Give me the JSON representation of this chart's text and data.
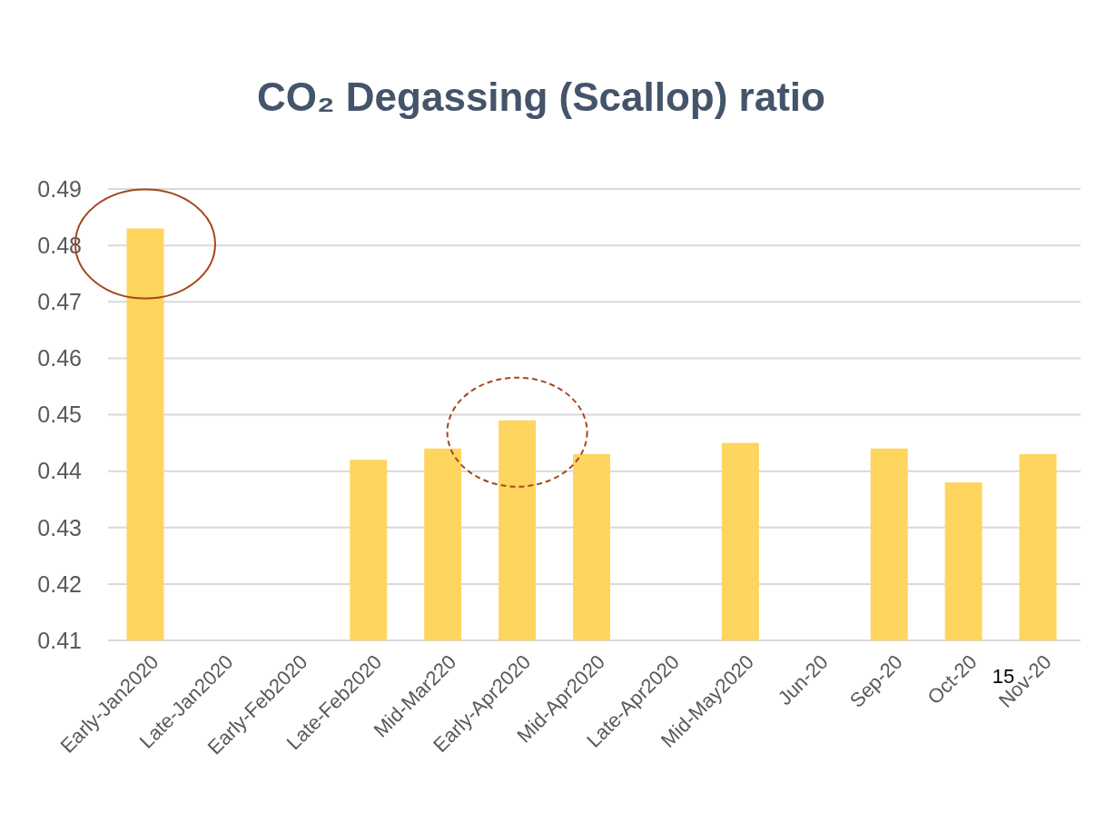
{
  "chart_data": {
    "type": "bar",
    "title": "CO₂ Degassing (Scallop) ratio",
    "categories": [
      "Early-Jan2020",
      "Late-Jan2020",
      "Early-Feb2020",
      "Late-Feb2020",
      "Mid-Mar220",
      "Early-Apr2020",
      "Mid-Apr2020",
      "Late-Apr2020",
      "Mid-May2020",
      "Jun-20",
      "Sep-20",
      "Oct-20",
      "Nov-20"
    ],
    "values": [
      0.483,
      null,
      null,
      0.442,
      0.444,
      0.449,
      0.443,
      null,
      0.445,
      null,
      0.444,
      0.438,
      0.443
    ],
    "color": "#fdd55f",
    "ylim": [
      0.41,
      0.49
    ],
    "yticks": [
      0.41,
      0.42,
      0.43,
      0.44,
      0.45,
      0.46,
      0.47,
      0.48,
      0.49
    ],
    "grid": "y",
    "annotations": [
      "15"
    ]
  }
}
